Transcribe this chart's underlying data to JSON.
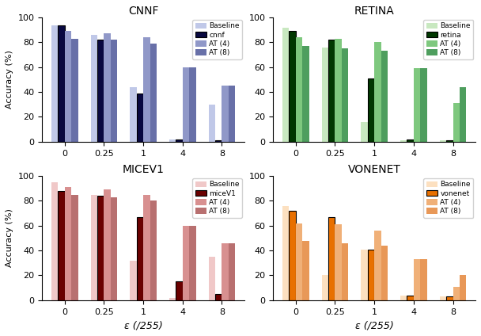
{
  "subplots": [
    {
      "title": "CNNF",
      "model_name": "cnnf",
      "x_labels": [
        "0",
        "0.25",
        "1",
        "4",
        "8"
      ],
      "baseline_color": "#c0c8e8",
      "model_color": "#080840",
      "at4_color": "#9098c8",
      "at8_color": "#6870a8",
      "legend_labels": [
        "Baseline",
        "cnnf",
        "AT (4)",
        "AT (8)"
      ],
      "data": {
        "baseline": [
          94,
          86,
          44,
          2,
          30
        ],
        "model": [
          94,
          82,
          39,
          2,
          1
        ],
        "at4": [
          89,
          87,
          84,
          60,
          45
        ],
        "at8": [
          83,
          82,
          79,
          60,
          45
        ]
      }
    },
    {
      "title": "RETINA",
      "model_name": "retina",
      "x_labels": [
        "0",
        "0.25",
        "1",
        "4",
        "8"
      ],
      "baseline_color": "#c8e8c0",
      "model_color": "#003800",
      "at4_color": "#7ec87e",
      "at8_color": "#4e9e5e",
      "legend_labels": [
        "Baseline",
        "retina",
        "AT (4)",
        "AT (8)"
      ],
      "data": {
        "baseline": [
          92,
          76,
          16,
          1,
          1
        ],
        "model": [
          89,
          82,
          51,
          2,
          1
        ],
        "at4": [
          84,
          83,
          80,
          59,
          31
        ],
        "at8": [
          77,
          75,
          73,
          59,
          44
        ]
      }
    },
    {
      "title": "MICEV1",
      "model_name": "miceV1",
      "x_labels": [
        "0",
        "0.25",
        "1",
        "4",
        "8"
      ],
      "baseline_color": "#f0c8c8",
      "model_color": "#6a0000",
      "at4_color": "#d89090",
      "at8_color": "#b87070",
      "legend_labels": [
        "Baseline",
        "miceV1",
        "AT (4)",
        "AT (8)"
      ],
      "data": {
        "baseline": [
          95,
          85,
          32,
          2,
          35
        ],
        "model": [
          88,
          84,
          67,
          15,
          5
        ],
        "at4": [
          91,
          89,
          85,
          60,
          46
        ],
        "at8": [
          85,
          83,
          80,
          60,
          46
        ]
      }
    },
    {
      "title": "VONENET",
      "model_name": "vonenet",
      "x_labels": [
        "0",
        "0.25",
        "1",
        "4",
        "8"
      ],
      "baseline_color": "#fce0c0",
      "model_color": "#e87000",
      "at4_color": "#f0b078",
      "at8_color": "#e89858",
      "legend_labels": [
        "Baseline",
        "vonenet",
        "AT (4)",
        "AT (8)"
      ],
      "data": {
        "baseline": [
          76,
          20,
          41,
          4,
          3
        ],
        "model": [
          72,
          67,
          41,
          4,
          3
        ],
        "at4": [
          62,
          61,
          56,
          33,
          11
        ],
        "at8": [
          48,
          46,
          44,
          33,
          20
        ]
      }
    }
  ],
  "xlabel": "ε (/255)",
  "ylabel": "Accuracy (%)",
  "ylim": [
    0,
    100
  ],
  "yticks": [
    0,
    20,
    40,
    60,
    80,
    100
  ],
  "bar_width": 0.17,
  "figsize": [
    6.08,
    4.24
  ],
  "dpi": 100
}
